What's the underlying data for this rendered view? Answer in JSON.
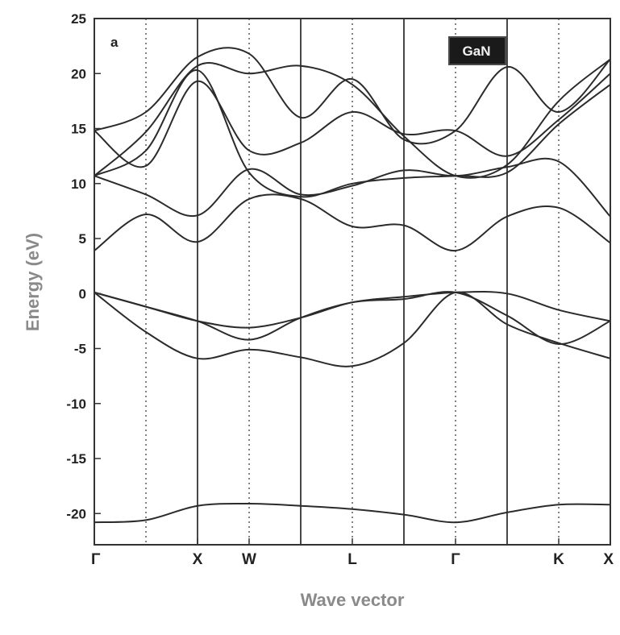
{
  "chart_data": {
    "type": "line",
    "panel_label": "a",
    "legend_label": "GaN",
    "xlabel": "Wave vector",
    "ylabel": "Energy (eV)",
    "ylim": [
      -22,
      25
    ],
    "yticks": [
      25,
      20,
      15,
      10,
      5,
      0,
      -5,
      -10,
      -15,
      -20
    ],
    "xlim": [
      0,
      10
    ],
    "high_symmetry_points": [
      {
        "label": "Γ",
        "x": 0
      },
      {
        "label": "X",
        "x": 2
      },
      {
        "label": "W",
        "x": 3
      },
      {
        "label": "L",
        "x": 5
      },
      {
        "label": "Γ",
        "x": 7
      },
      {
        "label": "K",
        "x": 9
      },
      {
        "label": "X",
        "x": 10
      }
    ],
    "solid_gridlines_x": [
      2,
      4,
      6,
      8
    ],
    "dotted_gridlines_x": [
      1,
      3,
      5,
      7,
      9
    ],
    "series": [
      {
        "x": [
          0,
          1,
          2,
          3,
          4,
          5,
          6,
          7,
          8,
          9,
          10
        ],
        "y": [
          -20.8,
          -20.6,
          -19.3,
          -19.1,
          -19.3,
          -19.6,
          -20.1,
          -20.8,
          -19.9,
          -19.2,
          -19.2
        ]
      },
      {
        "x": [
          0,
          1,
          2,
          3,
          4,
          5,
          6,
          7,
          8,
          9,
          10
        ],
        "y": [
          0.1,
          -3.5,
          -5.9,
          -5.1,
          -5.8,
          -6.6,
          -4.5,
          0.1,
          -2.8,
          -4.5,
          -5.9
        ]
      },
      {
        "x": [
          0,
          1,
          2,
          3,
          4,
          5,
          6,
          7,
          8,
          9,
          10
        ],
        "y": [
          0.1,
          -1.2,
          -2.5,
          -4.2,
          -2.2,
          -0.8,
          -0.5,
          0.1,
          -2.0,
          -4.6,
          -2.5
        ]
      },
      {
        "x": [
          0,
          1,
          2,
          3,
          4,
          5,
          6,
          7,
          8,
          9,
          10
        ],
        "y": [
          0.1,
          -1.2,
          -2.5,
          -3.1,
          -2.2,
          -0.8,
          -0.3,
          0.1,
          0.0,
          -1.5,
          -2.5
        ]
      },
      {
        "x": [
          0,
          1,
          2,
          3,
          4,
          5,
          6,
          7,
          8,
          9,
          10
        ],
        "y": [
          3.9,
          7.2,
          4.7,
          8.6,
          8.6,
          6.1,
          6.2,
          3.9,
          7.0,
          7.8,
          4.6
        ]
      },
      {
        "x": [
          0,
          1,
          2,
          3,
          4,
          5,
          6,
          7,
          8,
          9,
          10
        ],
        "y": [
          10.7,
          9.0,
          7.1,
          11.3,
          9.0,
          9.8,
          11.2,
          10.7,
          11.5,
          12.0,
          7.0
        ]
      },
      {
        "x": [
          0,
          1,
          2,
          3,
          4,
          5,
          6,
          7,
          8,
          9,
          10
        ],
        "y": [
          10.7,
          13.0,
          20.3,
          11.0,
          8.8,
          10.0,
          10.5,
          10.7,
          11.0,
          15.4,
          19.0
        ]
      },
      {
        "x": [
          0,
          1,
          2,
          3,
          4,
          5,
          6,
          7,
          8,
          9,
          10
        ],
        "y": [
          14.8,
          11.6,
          19.3,
          13.0,
          13.7,
          16.5,
          14.5,
          14.8,
          12.5,
          15.8,
          20.0
        ]
      },
      {
        "x": [
          0,
          1,
          2,
          3,
          4,
          5,
          6,
          7,
          8,
          9,
          10
        ],
        "y": [
          14.8,
          16.5,
          21.5,
          21.8,
          16.0,
          19.5,
          14.0,
          14.8,
          20.6,
          16.5,
          21.3
        ]
      },
      {
        "x": [
          0,
          1,
          2,
          3,
          4,
          5,
          6,
          7,
          8,
          9,
          10
        ],
        "y": [
          10.7,
          14.7,
          20.7,
          20.0,
          20.7,
          19.0,
          14.3,
          10.7,
          11.7,
          17.5,
          21.3
        ]
      }
    ],
    "colors": {
      "line": "#2b2b2b",
      "grid": "#333333",
      "axis_title": "#8a8a8a",
      "legend_bg": "#1a1a1a",
      "legend_border": "#4a4a4a"
    },
    "grid": true,
    "legend_position": "top-right"
  }
}
